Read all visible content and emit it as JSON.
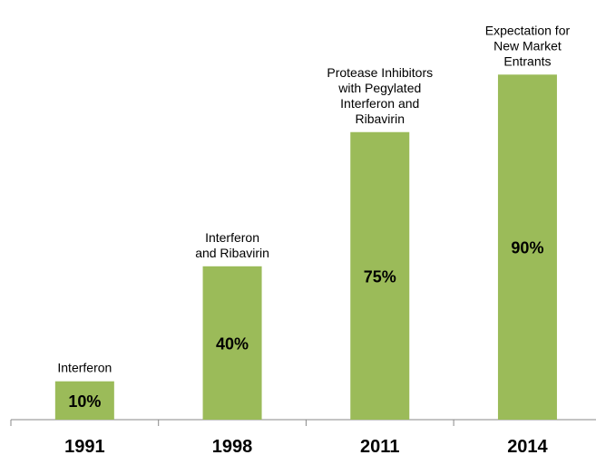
{
  "chart_data": {
    "type": "bar",
    "categories": [
      "1991",
      "1998",
      "2011",
      "2014"
    ],
    "values": [
      10,
      40,
      75,
      90
    ],
    "value_labels": [
      "10%",
      "40%",
      "75%",
      "90%"
    ],
    "color": "#9bbb59",
    "annotations": [
      [
        "Interferon"
      ],
      [
        "Interferon",
        "and Ribavirin"
      ],
      [
        "Protease Inhibitors",
        "with  Pegylated",
        "Interferon and",
        "Ribavirin"
      ],
      [
        "Expectation for",
        "New Market",
        "Entrants"
      ]
    ]
  }
}
